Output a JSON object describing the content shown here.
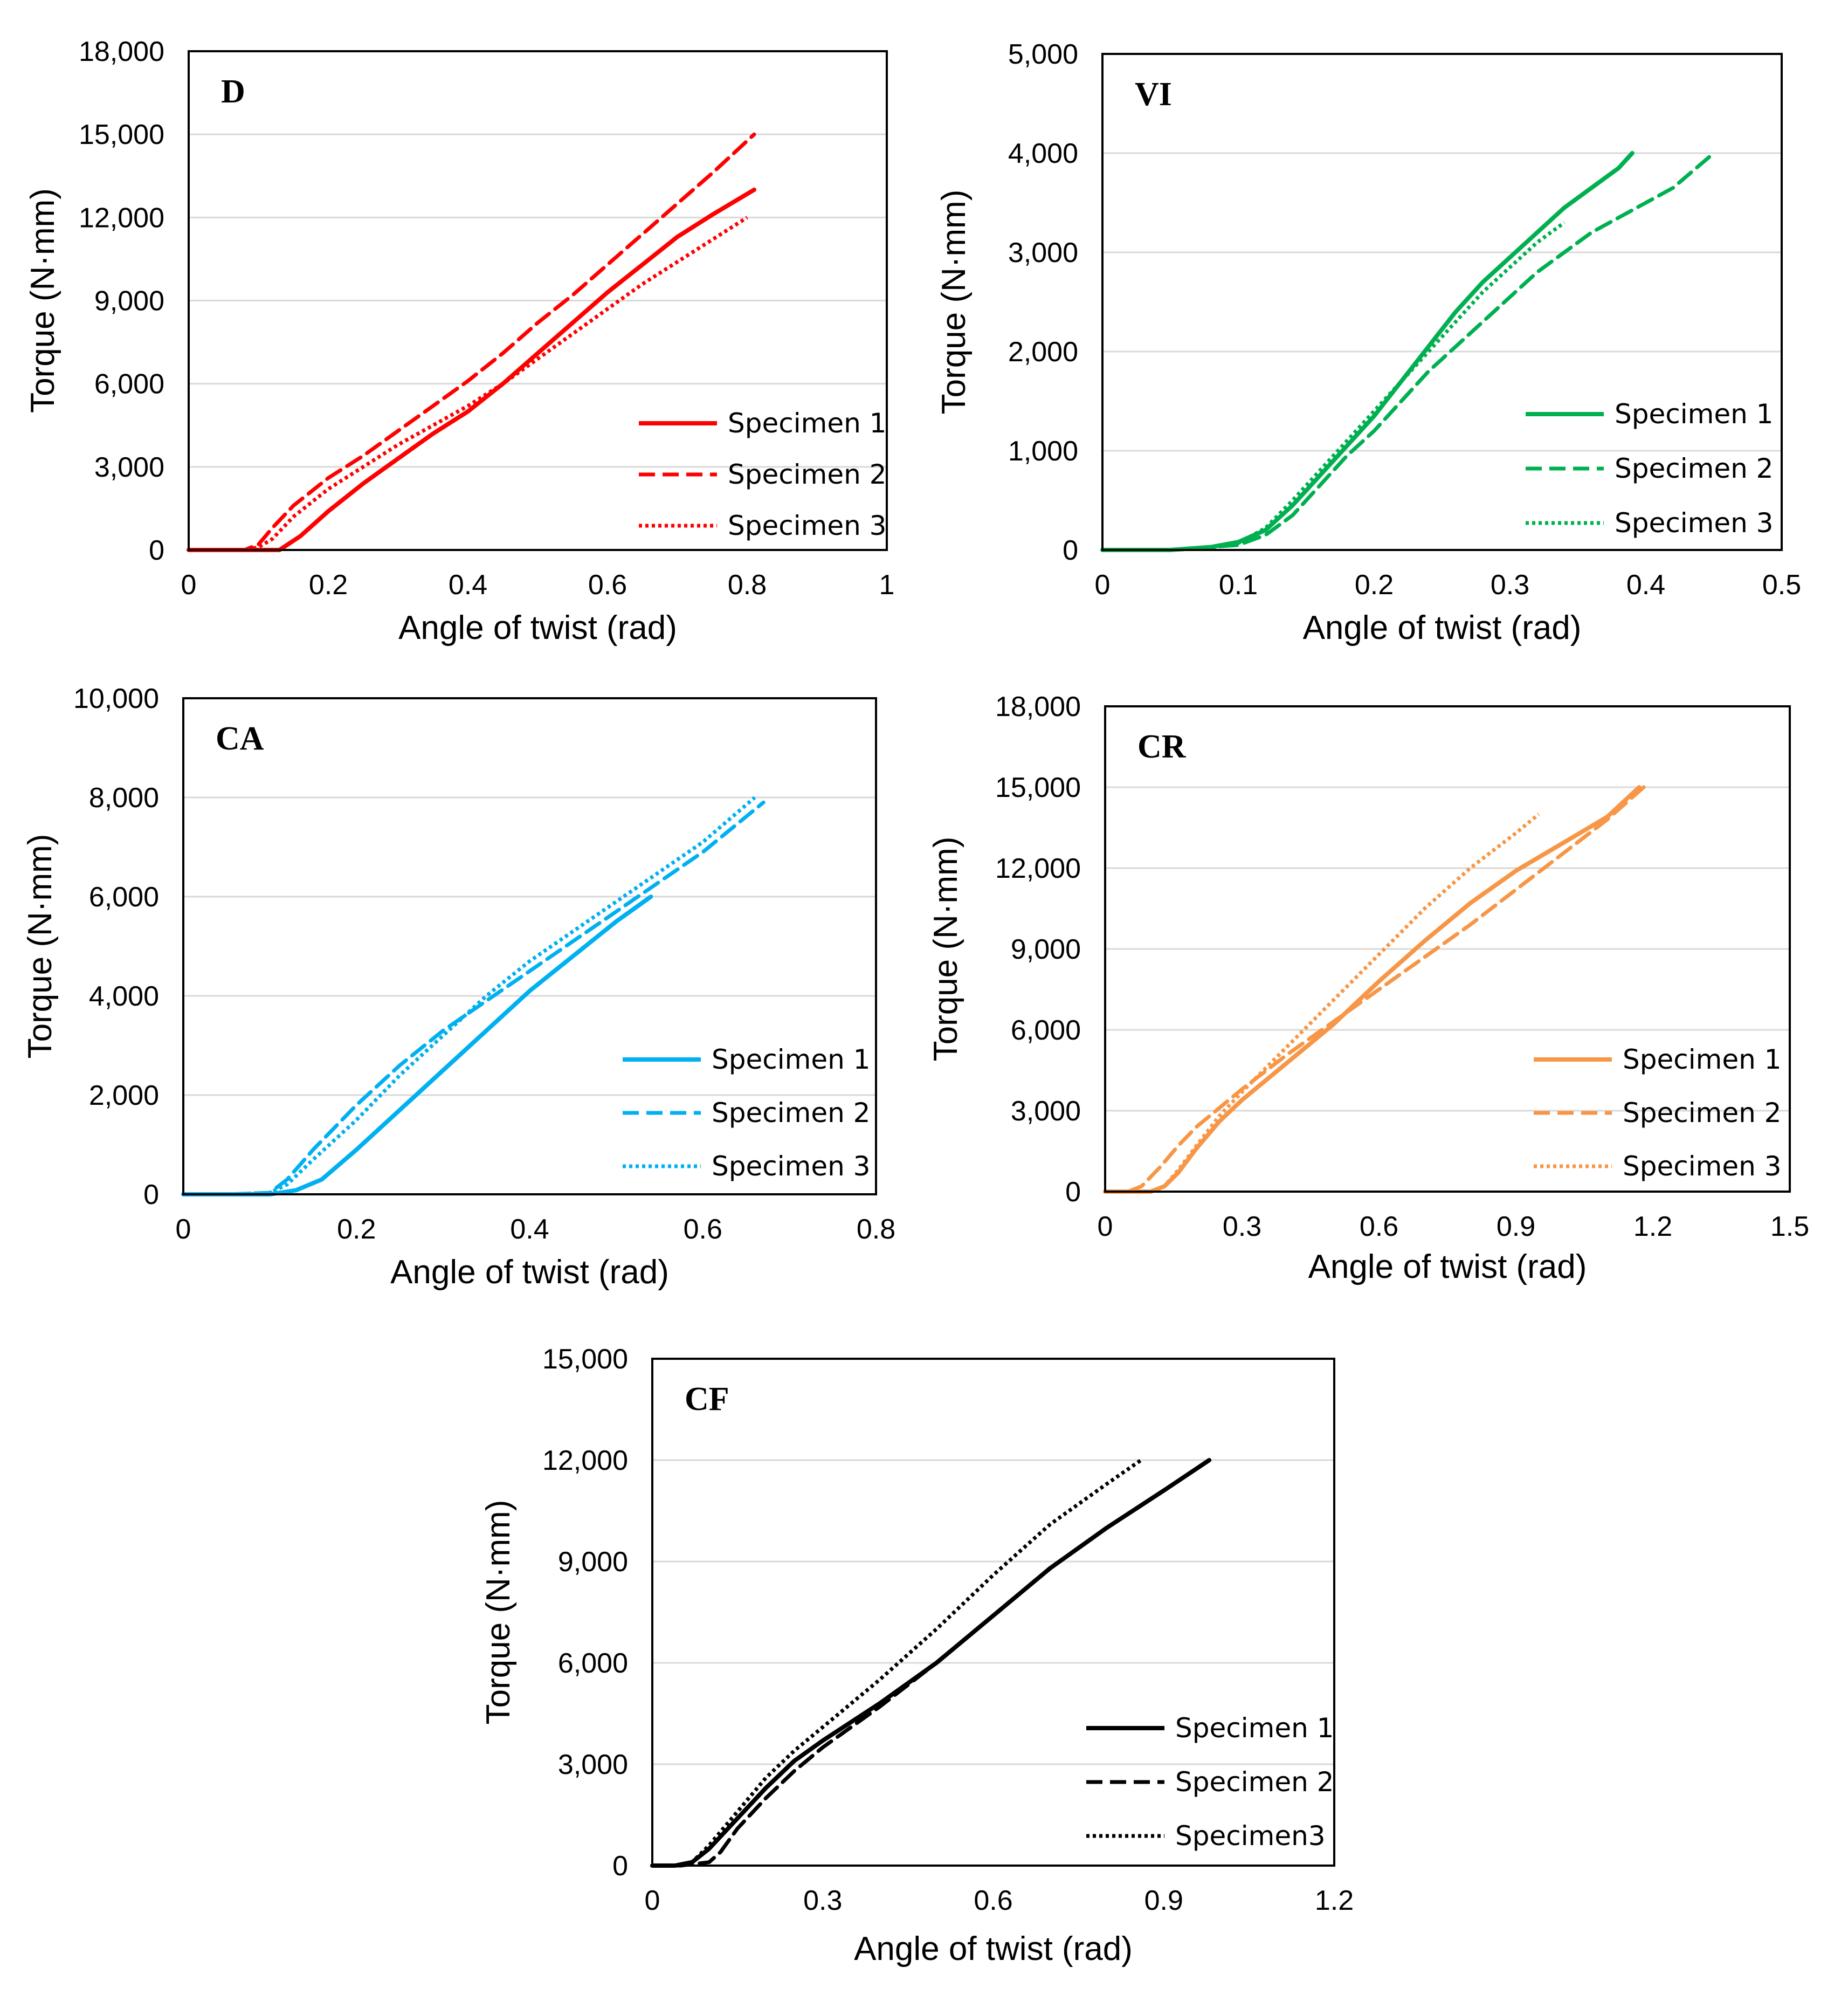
{
  "chart_data": [
    {
      "type": "line",
      "label": "D",
      "xlabel": "Angle of twist (rad)",
      "ylabel": "Torque (N·mm)",
      "xlim": [
        0,
        1
      ],
      "ylim": [
        0,
        18000
      ],
      "xticks": [
        0,
        0.2,
        0.4,
        0.6,
        0.8,
        1
      ],
      "xtick_labels": [
        "0",
        "0.2",
        "0.4",
        "0.6",
        "0.8",
        "1"
      ],
      "yticks": [
        0,
        3000,
        6000,
        9000,
        12000,
        15000,
        18000
      ],
      "ytick_labels": [
        "0",
        "3,000",
        "6,000",
        "9,000",
        "12,000",
        "15,000",
        "18,000"
      ],
      "grid": true,
      "legend_position": "bottom-right",
      "color": "#ff0000",
      "series": [
        {
          "name": "Specimen 1",
          "style": "solid",
          "x": [
            0,
            0.05,
            0.1,
            0.13,
            0.16,
            0.2,
            0.25,
            0.3,
            0.35,
            0.4,
            0.45,
            0.5,
            0.55,
            0.6,
            0.65,
            0.7,
            0.75,
            0.81
          ],
          "y": [
            0,
            0,
            0,
            0,
            500,
            1400,
            2400,
            3300,
            4200,
            5000,
            6000,
            7100,
            8200,
            9300,
            10300,
            11300,
            12100,
            13000
          ]
        },
        {
          "name": "Specimen 2",
          "style": "dashed",
          "x": [
            0,
            0.05,
            0.08,
            0.1,
            0.12,
            0.15,
            0.2,
            0.25,
            0.3,
            0.35,
            0.4,
            0.45,
            0.5,
            0.55,
            0.6,
            0.65,
            0.7,
            0.75,
            0.81
          ],
          "y": [
            0,
            0,
            0,
            200,
            800,
            1600,
            2600,
            3400,
            4300,
            5200,
            6100,
            7100,
            8200,
            9200,
            10300,
            11400,
            12500,
            13600,
            15000
          ]
        },
        {
          "name": "Specimen 3",
          "style": "dotted",
          "x": [
            0,
            0.05,
            0.08,
            0.1,
            0.12,
            0.15,
            0.2,
            0.25,
            0.3,
            0.35,
            0.4,
            0.45,
            0.5,
            0.55,
            0.6,
            0.65,
            0.7,
            0.75,
            0.8
          ],
          "y": [
            0,
            0,
            0,
            100,
            400,
            1200,
            2200,
            3000,
            3800,
            4500,
            5200,
            6000,
            6900,
            7800,
            8700,
            9600,
            10400,
            11200,
            12000
          ]
        }
      ]
    },
    {
      "type": "line",
      "label": "VI",
      "xlabel": "Angle of twist (rad)",
      "ylabel": "Torque (N·mm)",
      "xlim": [
        0,
        0.5
      ],
      "ylim": [
        0,
        5000
      ],
      "xticks": [
        0,
        0.1,
        0.2,
        0.3,
        0.4,
        0.5
      ],
      "xtick_labels": [
        "0",
        "0.1",
        "0.2",
        "0.3",
        "0.4",
        "0.5"
      ],
      "yticks": [
        0,
        1000,
        2000,
        3000,
        4000,
        5000
      ],
      "ytick_labels": [
        "0",
        "1,000",
        "2,000",
        "3,000",
        "4,000",
        "5,000"
      ],
      "grid": true,
      "legend_position": "bottom-right",
      "color": "#00b050",
      "series": [
        {
          "name": "Specimen 1",
          "style": "solid",
          "x": [
            0,
            0.05,
            0.08,
            0.1,
            0.12,
            0.14,
            0.16,
            0.18,
            0.2,
            0.22,
            0.24,
            0.26,
            0.28,
            0.3,
            0.32,
            0.34,
            0.36,
            0.38,
            0.39
          ],
          "y": [
            0,
            0,
            30,
            80,
            200,
            450,
            750,
            1050,
            1350,
            1700,
            2050,
            2400,
            2700,
            2950,
            3200,
            3450,
            3650,
            3850,
            4000
          ]
        },
        {
          "name": "Specimen 2",
          "style": "dashed",
          "x": [
            0,
            0.05,
            0.1,
            0.12,
            0.14,
            0.16,
            0.18,
            0.2,
            0.22,
            0.24,
            0.26,
            0.28,
            0.3,
            0.32,
            0.34,
            0.36,
            0.38,
            0.4,
            0.42,
            0.45
          ],
          "y": [
            0,
            0,
            50,
            150,
            350,
            650,
            950,
            1200,
            1500,
            1800,
            2050,
            2300,
            2550,
            2800,
            3000,
            3200,
            3350,
            3500,
            3650,
            4000
          ]
        },
        {
          "name": "Specimen 3",
          "style": "dotted",
          "x": [
            0,
            0.05,
            0.08,
            0.1,
            0.12,
            0.14,
            0.16,
            0.18,
            0.2,
            0.22,
            0.24,
            0.26,
            0.28,
            0.3,
            0.32,
            0.34
          ],
          "y": [
            0,
            0,
            20,
            70,
            220,
            500,
            800,
            1100,
            1400,
            1700,
            2000,
            2300,
            2600,
            2850,
            3100,
            3300
          ]
        }
      ]
    },
    {
      "type": "line",
      "label": "CA",
      "xlabel": "Angle of twist (rad)",
      "ylabel": "Torque (N·mm)",
      "xlim": [
        0,
        0.8
      ],
      "ylim": [
        0,
        10000
      ],
      "xticks": [
        0,
        0.2,
        0.4,
        0.6,
        0.8
      ],
      "xtick_labels": [
        "0",
        "0.2",
        "0.4",
        "0.6",
        "0.8"
      ],
      "yticks": [
        0,
        2000,
        4000,
        6000,
        8000,
        10000
      ],
      "ytick_labels": [
        "0",
        "2,000",
        "4,000",
        "6,000",
        "8,000",
        "10,000"
      ],
      "grid": true,
      "legend_position": "bottom-right",
      "color": "#00b0f0",
      "series": [
        {
          "name": "Specimen 1",
          "style": "solid",
          "x": [
            0,
            0.05,
            0.1,
            0.13,
            0.16,
            0.2,
            0.25,
            0.3,
            0.35,
            0.4,
            0.45,
            0.5,
            0.54
          ],
          "y": [
            0,
            0,
            0,
            80,
            300,
            900,
            1700,
            2500,
            3300,
            4100,
            4800,
            5500,
            6000
          ]
        },
        {
          "name": "Specimen 2",
          "style": "dashed",
          "x": [
            0,
            0.05,
            0.1,
            0.12,
            0.15,
            0.2,
            0.25,
            0.3,
            0.35,
            0.4,
            0.45,
            0.5,
            0.55,
            0.6,
            0.67
          ],
          "y": [
            0,
            0,
            30,
            300,
            900,
            1800,
            2600,
            3300,
            3900,
            4500,
            5100,
            5700,
            6300,
            6900,
            7900
          ]
        },
        {
          "name": "Specimen 3",
          "style": "dotted",
          "x": [
            0,
            0.05,
            0.1,
            0.12,
            0.15,
            0.2,
            0.25,
            0.3,
            0.35,
            0.4,
            0.45,
            0.5,
            0.55,
            0.6,
            0.66
          ],
          "y": [
            0,
            0,
            30,
            200,
            700,
            1500,
            2400,
            3200,
            4000,
            4700,
            5300,
            5900,
            6500,
            7100,
            8000
          ]
        }
      ]
    },
    {
      "type": "line",
      "label": "CR",
      "xlabel": "Angle of twist (rad)",
      "ylabel": "Torque (N·mm)",
      "xlim": [
        0,
        1.5
      ],
      "ylim": [
        0,
        18000
      ],
      "xticks": [
        0,
        0.3,
        0.6,
        0.9,
        1.2,
        1.5
      ],
      "xtick_labels": [
        "0",
        "0.3",
        "0.6",
        "0.9",
        "1.2",
        "1.5"
      ],
      "yticks": [
        0,
        3000,
        6000,
        9000,
        12000,
        15000,
        18000
      ],
      "ytick_labels": [
        "0",
        "3,000",
        "6,000",
        "9,000",
        "12,000",
        "15,000",
        "18,000"
      ],
      "grid": true,
      "legend_position": "bottom-right",
      "color": "#f79646",
      "series": [
        {
          "name": "Specimen 1",
          "style": "solid",
          "x": [
            0,
            0.05,
            0.1,
            0.13,
            0.16,
            0.2,
            0.25,
            0.3,
            0.4,
            0.5,
            0.6,
            0.7,
            0.8,
            0.9,
            1.0,
            1.1,
            1.17
          ],
          "y": [
            0,
            0,
            0,
            200,
            700,
            1600,
            2600,
            3400,
            4800,
            6200,
            7800,
            9300,
            10700,
            11900,
            12900,
            13900,
            15000
          ]
        },
        {
          "name": "Specimen 2",
          "style": "dashed",
          "x": [
            0,
            0.05,
            0.08,
            0.12,
            0.16,
            0.2,
            0.25,
            0.3,
            0.4,
            0.5,
            0.6,
            0.7,
            0.8,
            0.9,
            1.0,
            1.1,
            1.18
          ],
          "y": [
            0,
            0,
            200,
            900,
            1700,
            2400,
            3100,
            3800,
            5100,
            6300,
            7500,
            8700,
            9900,
            11200,
            12500,
            13800,
            15000
          ]
        },
        {
          "name": "Specimen 3",
          "style": "dotted",
          "x": [
            0,
            0.05,
            0.1,
            0.13,
            0.16,
            0.2,
            0.25,
            0.3,
            0.4,
            0.5,
            0.6,
            0.7,
            0.8,
            0.9,
            0.95
          ],
          "y": [
            0,
            0,
            0,
            200,
            800,
            1700,
            2800,
            3700,
            5400,
            7100,
            8800,
            10500,
            12000,
            13300,
            14000
          ]
        }
      ]
    },
    {
      "type": "line",
      "label": "CF",
      "xlabel": "Angle of twist (rad)",
      "ylabel": "Torque (N·mm)",
      "xlim": [
        0,
        1.2
      ],
      "ylim": [
        0,
        15000
      ],
      "xticks": [
        0,
        0.3,
        0.6,
        0.9,
        1.2
      ],
      "xtick_labels": [
        "0",
        "0.3",
        "0.6",
        "0.9",
        "1.2"
      ],
      "yticks": [
        0,
        3000,
        6000,
        9000,
        12000,
        15000
      ],
      "ytick_labels": [
        "0",
        "3,000",
        "6,000",
        "9,000",
        "12,000",
        "15,000"
      ],
      "grid": true,
      "legend_position": "bottom-right",
      "color": "#000000",
      "series": [
        {
          "name": "Specimen 1",
          "style": "solid",
          "x": [
            0,
            0.04,
            0.07,
            0.1,
            0.15,
            0.2,
            0.25,
            0.3,
            0.4,
            0.5,
            0.6,
            0.7,
            0.8,
            0.9,
            0.98
          ],
          "y": [
            0,
            0,
            100,
            500,
            1400,
            2300,
            3100,
            3700,
            4800,
            6000,
            7400,
            8800,
            10000,
            11100,
            12000
          ]
        },
        {
          "name": "Specimen 2",
          "style": "dashed",
          "x": [
            0,
            0.05,
            0.1,
            0.12,
            0.15,
            0.2,
            0.25,
            0.3,
            0.4,
            0.5,
            0.6,
            0.7,
            0.8,
            0.9,
            0.98
          ],
          "y": [
            0,
            0,
            100,
            400,
            1100,
            2000,
            2800,
            3500,
            4700,
            6000,
            7400,
            8800,
            10000,
            11100,
            12000
          ]
        },
        {
          "name": "Specimen3",
          "style": "dotted",
          "x": [
            0,
            0.04,
            0.07,
            0.1,
            0.15,
            0.2,
            0.25,
            0.3,
            0.4,
            0.5,
            0.6,
            0.7,
            0.8,
            0.86
          ],
          "y": [
            0,
            0,
            100,
            600,
            1600,
            2600,
            3400,
            4100,
            5500,
            7000,
            8600,
            10100,
            11300,
            12000
          ]
        }
      ]
    }
  ]
}
